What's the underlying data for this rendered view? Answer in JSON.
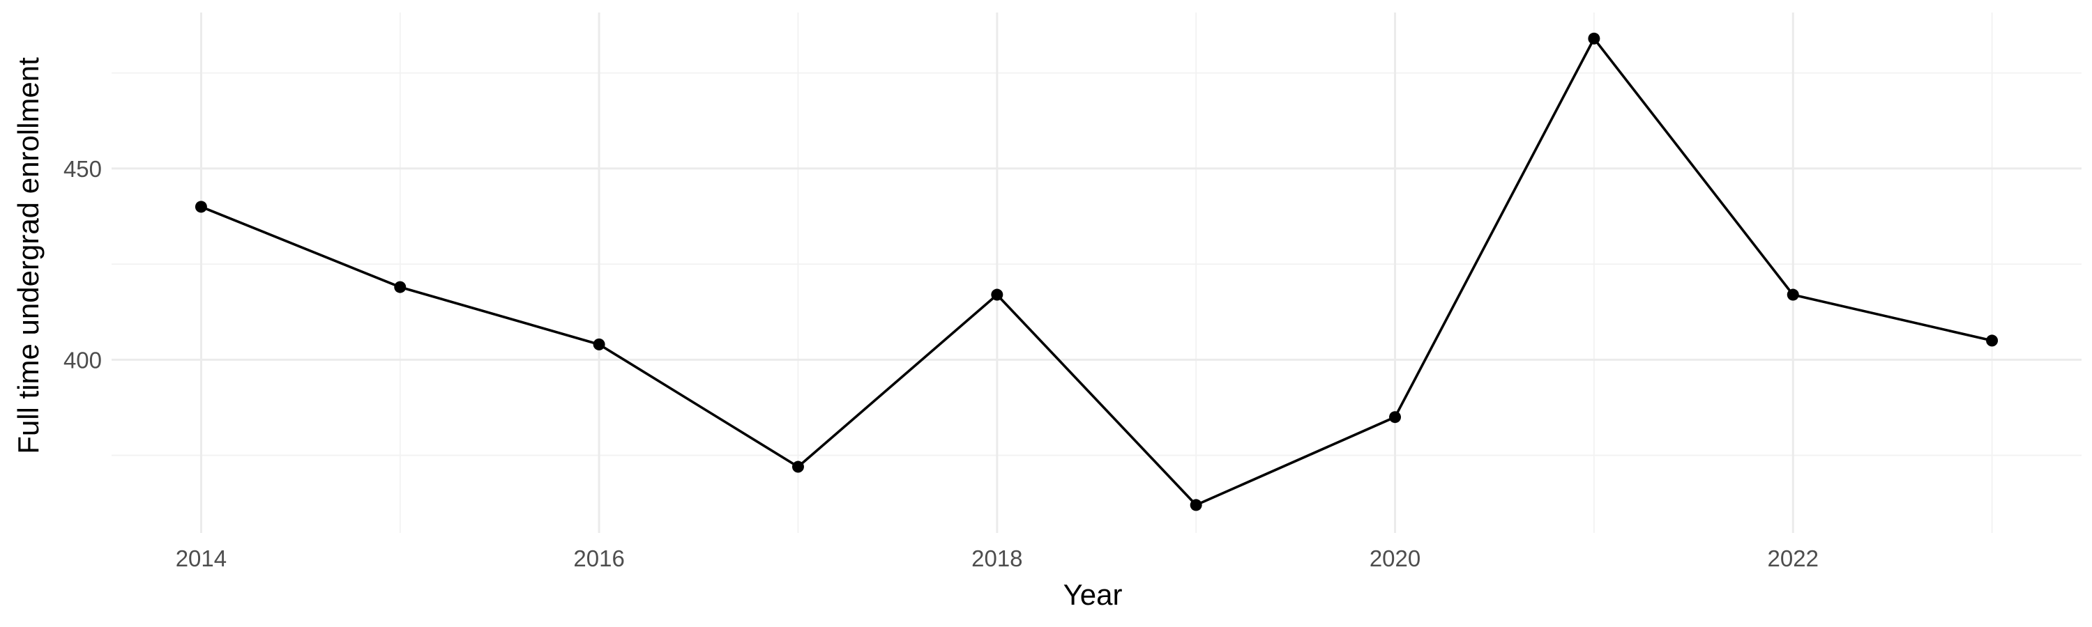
{
  "chart_data": {
    "type": "line",
    "title": "",
    "xlabel": "Year",
    "ylabel": "Full time undergrad enrollment",
    "x": [
      2014,
      2015,
      2016,
      2017,
      2018,
      2019,
      2020,
      2021,
      2022,
      2023
    ],
    "series": [
      {
        "values": [
          440,
          419,
          404,
          372,
          417,
          362,
          385,
          484,
          417,
          405
        ],
        "color": "#000000"
      }
    ],
    "x_ticks": [
      2014,
      2016,
      2018,
      2020,
      2022
    ],
    "x_tick_labels": [
      "2014",
      "2016",
      "2018",
      "2020",
      "2022"
    ],
    "y_ticks": [
      400,
      450
    ],
    "y_tick_labels": [
      "400",
      "450"
    ],
    "xlim": [
      2013.55,
      2023.45
    ],
    "ylim": [
      354.7,
      490.8
    ],
    "grid": true,
    "legend": "none",
    "background": "#ffffff"
  }
}
